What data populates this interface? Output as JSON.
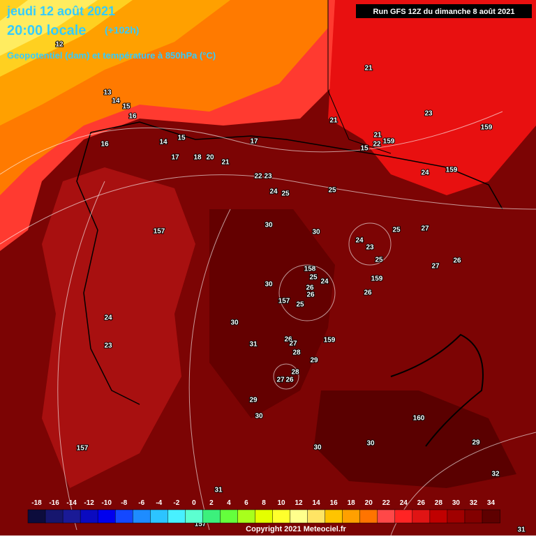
{
  "header": {
    "date": "jeudi 12 août 2021",
    "time": "20:00 locale",
    "offset": "(+102h)",
    "subtitle": "Geopotentiel (dam) et température à 850hPa (°C)",
    "run": "Run GFS 12Z du dimanche 8 août 2021"
  },
  "contour_labels": [
    21,
    23,
    159,
    13,
    14,
    15,
    16,
    12,
    16,
    14,
    15,
    17,
    21,
    21,
    15,
    22,
    159,
    24,
    159,
    17,
    18,
    20,
    21,
    22,
    23,
    24,
    25,
    25,
    157,
    30,
    30,
    25,
    27,
    24,
    23,
    25,
    27,
    26,
    158,
    25,
    24,
    30,
    26,
    26,
    157,
    25,
    26,
    159,
    24,
    30,
    23,
    31,
    26,
    27,
    159,
    28,
    29,
    28,
    27,
    26,
    29,
    30,
    160,
    157,
    30,
    30,
    29,
    31,
    32,
    157,
    31
  ],
  "colorbar": {
    "ticks": [
      -18,
      -16,
      -14,
      -12,
      -10,
      -8,
      -6,
      -4,
      -2,
      0,
      2,
      4,
      6,
      8,
      10,
      12,
      14,
      16,
      18,
      20,
      22,
      24,
      26,
      28,
      30,
      32,
      34
    ],
    "colors": [
      "#0c0c3c",
      "#16166e",
      "#1a1a96",
      "#0a0ac0",
      "#0000ee",
      "#1448ff",
      "#1e8cff",
      "#2cc4ff",
      "#48f0ff",
      "#5cffd0",
      "#3cf07c",
      "#64ff3c",
      "#a8ff1c",
      "#e4ff00",
      "#ffff2c",
      "#ffff8c",
      "#ffe464",
      "#ffc400",
      "#ffa000",
      "#ff7400",
      "#ff4848",
      "#ff2424",
      "#e01414",
      "#c00000",
      "#a00000",
      "#820000",
      "#5e0000"
    ]
  },
  "footer": "Copyright 2021 Meteociel.fr"
}
